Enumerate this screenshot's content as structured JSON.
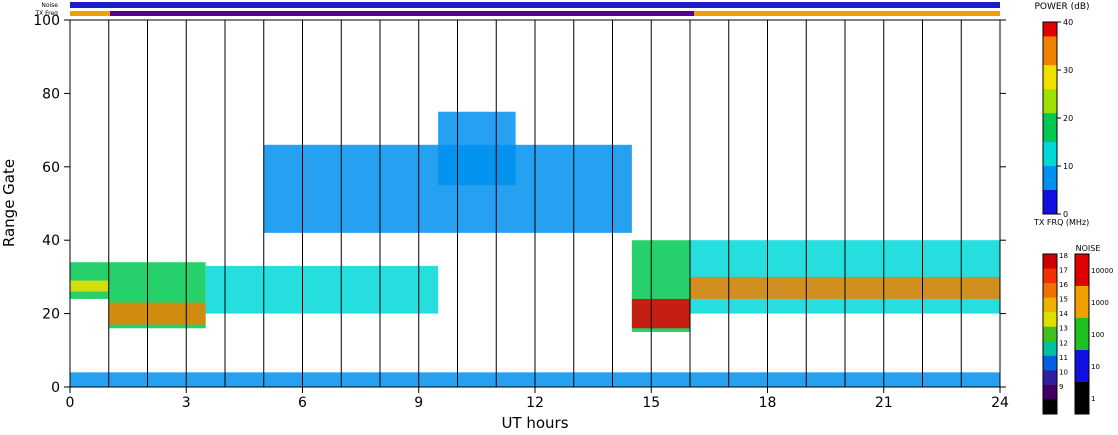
{
  "chart_data": {
    "type": "heatmap",
    "xlabel": "UT hours",
    "ylabel": "Range Gate",
    "xlim": [
      0,
      24
    ],
    "ylim": [
      0,
      100
    ],
    "x_ticks": [
      "0",
      "3",
      "6",
      "9",
      "12",
      "15",
      "18",
      "21",
      "24"
    ],
    "y_ticks": [
      "0",
      "20",
      "40",
      "60",
      "80",
      "100"
    ],
    "strip_labels": [
      "Noise",
      "TX Freq"
    ],
    "scan_boundaries_ut": [
      1,
      2,
      3,
      4,
      5,
      6,
      7,
      8,
      9,
      10,
      11,
      12,
      13,
      14,
      15,
      16,
      17,
      18,
      19,
      20,
      21,
      22,
      23
    ],
    "power_colorbar": {
      "title": "POWER (dB)",
      "ticks": [
        "40",
        "30",
        "20",
        "10",
        "0"
      ],
      "range": [
        0,
        40
      ]
    },
    "txfreq_colorbar": {
      "title": "TX FRQ (MHz)",
      "ticks": [
        "18",
        "17",
        "16",
        "15",
        "14",
        "13",
        "12",
        "11",
        "10",
        "9"
      ]
    },
    "noise_colorbar": {
      "title": "NOISE",
      "ticks": [
        "10000",
        "1000",
        "100",
        "10",
        "1"
      ]
    },
    "bands": [
      {
        "name": "main-echo",
        "x0": 0,
        "x1": 1,
        "y0": 24,
        "y1": 34,
        "power": 18
      },
      {
        "name": "main-echo-core",
        "x0": 0,
        "x1": 1,
        "y0": 26,
        "y1": 29,
        "power": 30
      },
      {
        "name": "morning-echo",
        "x0": 1,
        "x1": 3.5,
        "y0": 16,
        "y1": 34,
        "power": 16
      },
      {
        "name": "morning-core",
        "x0": 1,
        "x1": 3.5,
        "y0": 17,
        "y1": 23,
        "power": 35
      },
      {
        "name": "dayside-low",
        "x0": 3.5,
        "x1": 9.5,
        "y0": 20,
        "y1": 33,
        "power": 12
      },
      {
        "name": "dayside-high",
        "x0": 5,
        "x1": 14.5,
        "y0": 42,
        "y1": 66,
        "power": 10
      },
      {
        "name": "noon-patch",
        "x0": 9.5,
        "x1": 11.5,
        "y0": 55,
        "y1": 75,
        "power": 8
      },
      {
        "name": "afternoon-echo",
        "x0": 14.5,
        "x1": 16,
        "y0": 15,
        "y1": 40,
        "power": 20
      },
      {
        "name": "afternoon-core",
        "x0": 14.5,
        "x1": 16,
        "y0": 16,
        "y1": 24,
        "power": 38
      },
      {
        "name": "evening-echo",
        "x0": 16,
        "x1": 24,
        "y0": 20,
        "y1": 40,
        "power": 15
      },
      {
        "name": "evening-core",
        "x0": 16,
        "x1": 24,
        "y0": 24,
        "y1": 30,
        "power": 32
      },
      {
        "name": "ground-scatter",
        "x0": 0,
        "x1": 24,
        "y0": 0,
        "y1": 4,
        "power": 10
      }
    ]
  }
}
